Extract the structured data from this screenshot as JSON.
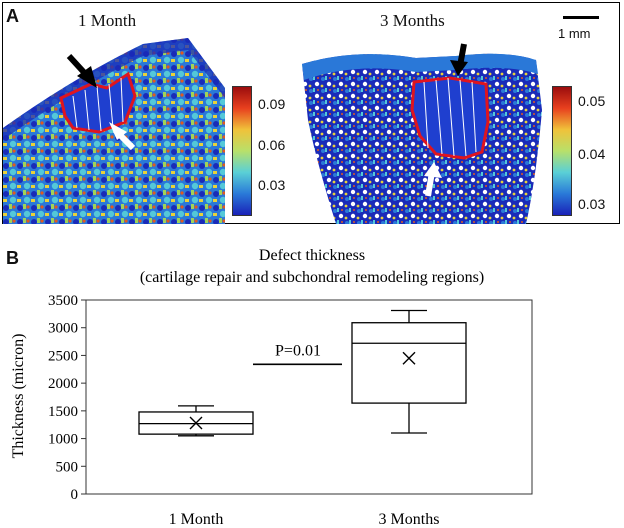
{
  "panel_a": {
    "letter": "A",
    "left_caption": "1 Month",
    "right_caption": "3 Months",
    "scale_bar_label": "1 mm",
    "left_colorbar_ticks": [
      "0.09",
      "0.06",
      "0.03"
    ],
    "right_colorbar_ticks": [
      "0.05",
      "0.04",
      "0.03"
    ]
  },
  "panel_b": {
    "letter": "B"
  },
  "colors": {
    "box_stroke": "#000000",
    "defect_outline": "#e0141e",
    "map_blue": "#1a2bb8"
  },
  "chart_data": {
    "type": "box",
    "title": "Defect thickness",
    "subtitle": "(cartilage repair and subchondral remodeling regions)",
    "ylabel": "Thickness (micron)",
    "xlabel": "",
    "ylim": [
      0,
      3500
    ],
    "yticks": [
      0,
      500,
      1000,
      1500,
      2000,
      2500,
      3000,
      3500
    ],
    "categories": [
      "1 Month",
      "3 Months"
    ],
    "boxes": [
      {
        "category": "1 Month",
        "min": 1050,
        "q1": 1080,
        "median": 1270,
        "q3": 1480,
        "max": 1590,
        "mean": 1280
      },
      {
        "category": "3 Months",
        "min": 1100,
        "q1": 1640,
        "median": 2720,
        "q3": 3090,
        "max": 3310,
        "mean": 2450
      }
    ],
    "annotation": {
      "text": "P=0.01",
      "y": 2340
    },
    "grid": false
  }
}
